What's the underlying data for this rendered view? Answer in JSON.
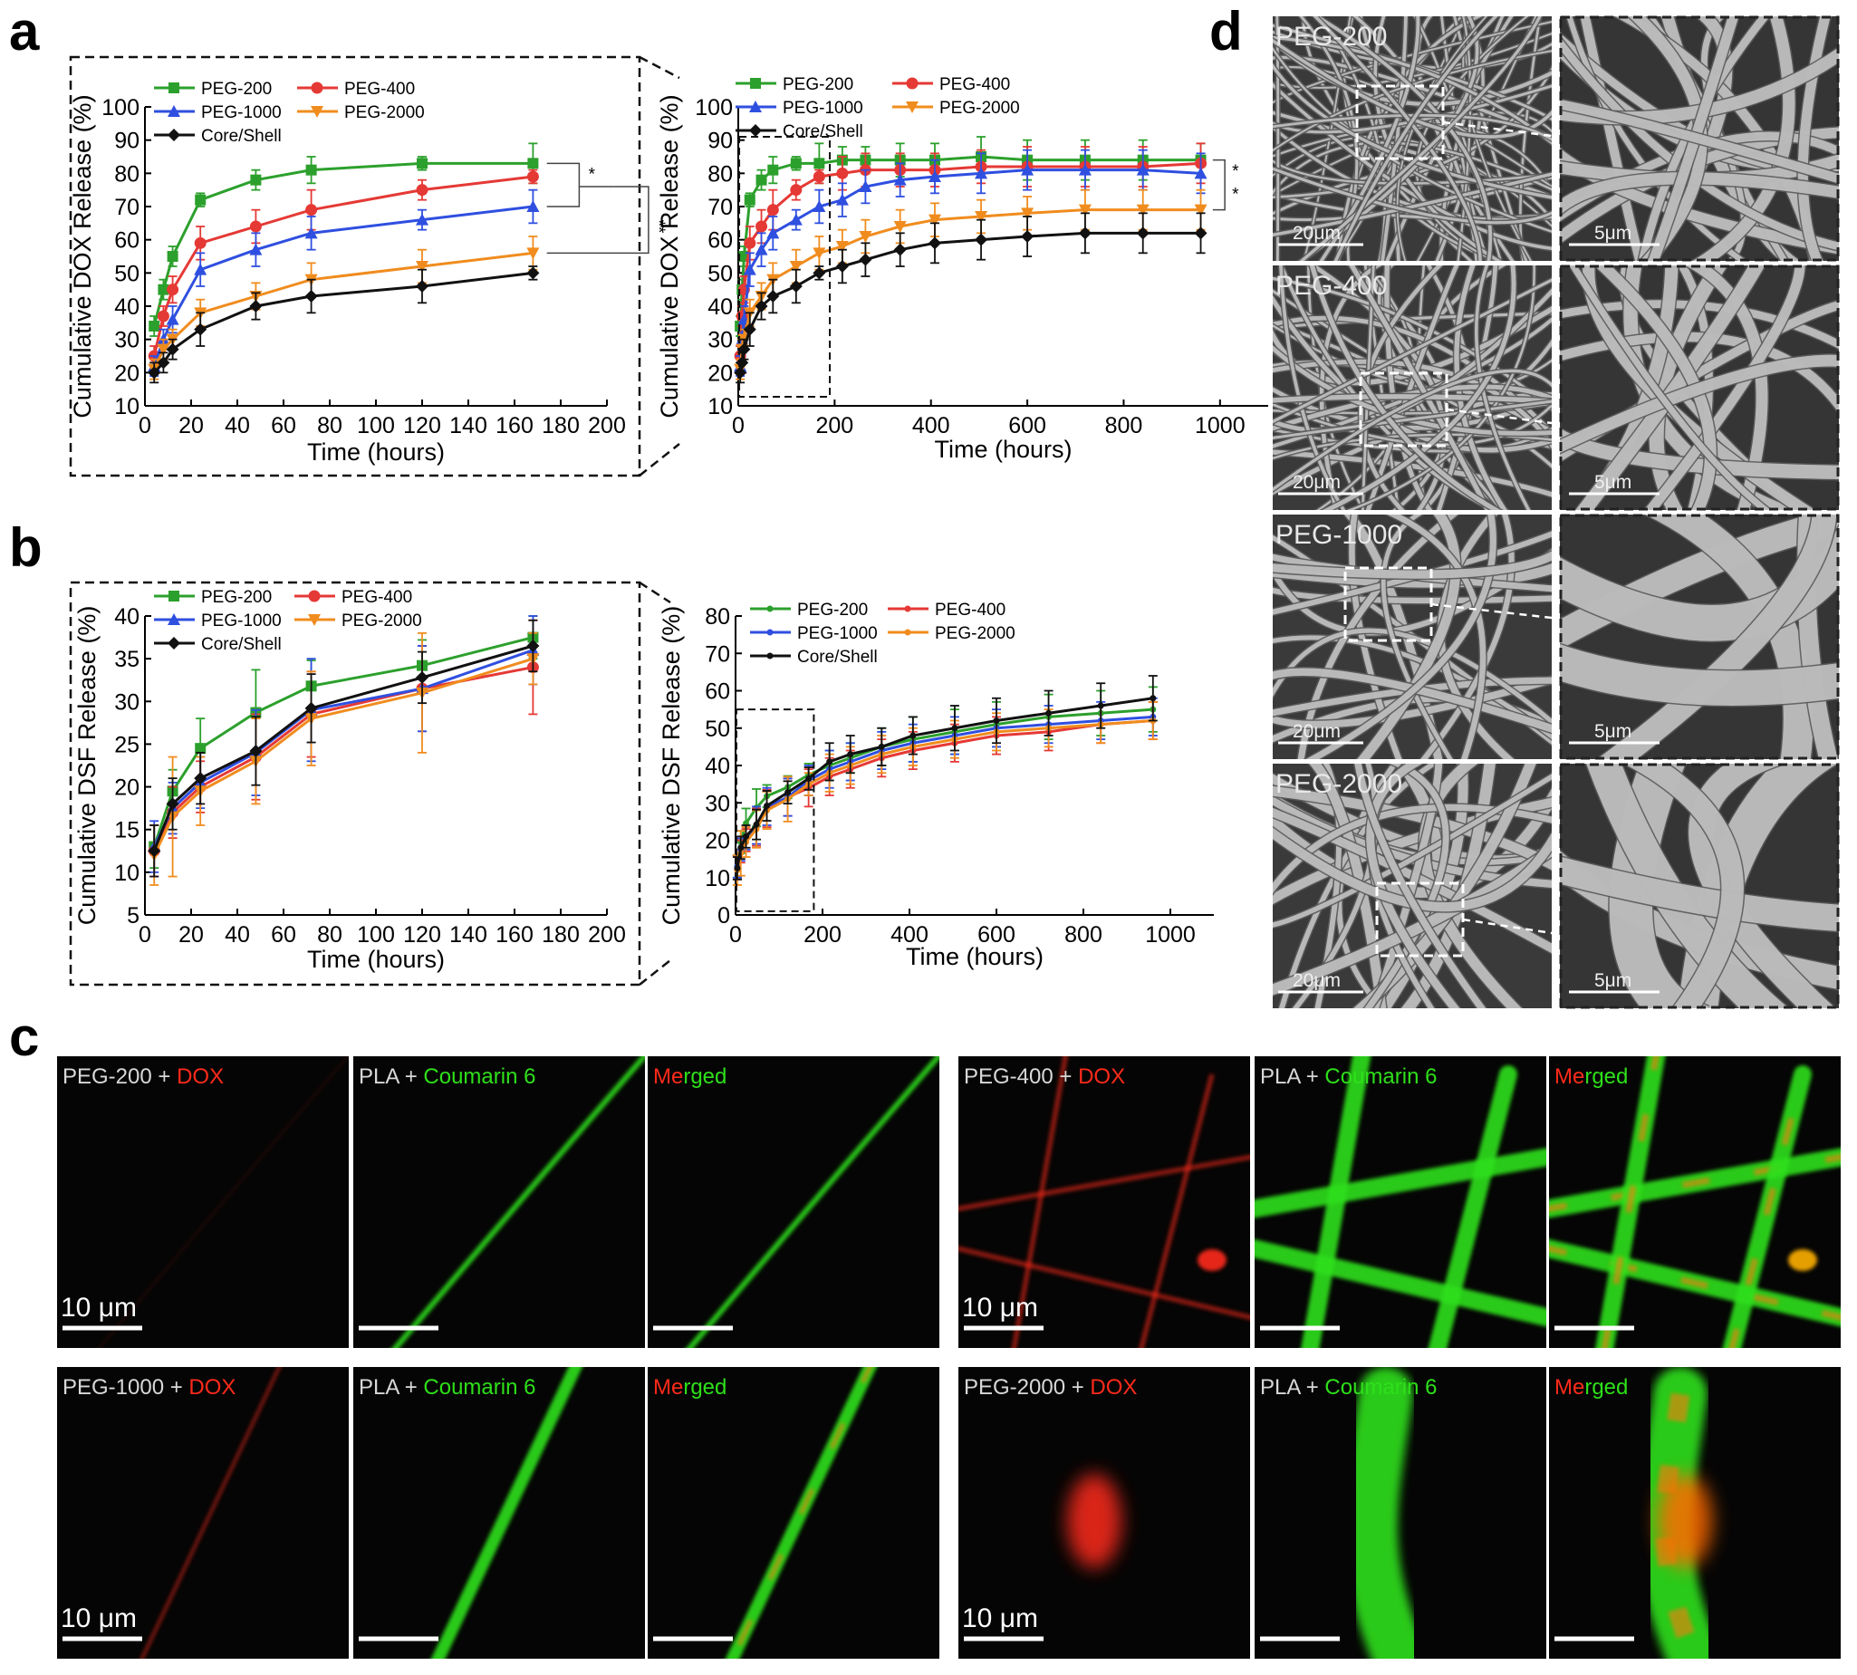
{
  "figure": {
    "panel_letters": {
      "a": "a",
      "b": "b",
      "c": "c",
      "d": "d"
    }
  },
  "colors": {
    "PEG-200": "#2ca02c",
    "PEG-400": "#e53935",
    "PEG-1000": "#2f4fe0",
    "PEG-2000": "#f08c1e",
    "Core/Shell": "#111111",
    "fluor_red": "#ff2a1a",
    "fluor_green": "#2ee01a",
    "label_gray": "#d8d8d8"
  },
  "chart_data": [
    {
      "id": "a_zoom",
      "type": "line",
      "xlabel": "Time (hours)",
      "ylabel": "Cumulative DOX Release (%)",
      "xlim": [
        0,
        200
      ],
      "ylim": [
        10,
        100
      ],
      "xticks": [
        0,
        20,
        40,
        60,
        80,
        100,
        120,
        140,
        160,
        180,
        200
      ],
      "yticks": [
        10,
        20,
        30,
        40,
        50,
        60,
        70,
        80,
        90,
        100
      ],
      "legend_placement": "top-left",
      "legend": [
        "PEG-200",
        "PEG-400",
        "PEG-1000",
        "PEG-2000",
        "Core/Shell"
      ],
      "series": [
        {
          "name": "PEG-200",
          "marker": "square",
          "x": [
            4,
            8,
            12,
            24,
            48,
            72,
            120,
            168
          ],
          "y": [
            34,
            45,
            55,
            72,
            78,
            81,
            83,
            83
          ],
          "err": [
            3,
            3,
            3,
            2,
            3,
            4,
            2,
            6
          ]
        },
        {
          "name": "PEG-400",
          "marker": "circle",
          "x": [
            4,
            8,
            12,
            24,
            48,
            72,
            120,
            168
          ],
          "y": [
            25,
            37,
            45,
            59,
            64,
            69,
            75,
            79
          ],
          "err": [
            3,
            3,
            4,
            5,
            5,
            6,
            3,
            2
          ]
        },
        {
          "name": "PEG-1000",
          "marker": "triangle-up",
          "x": [
            4,
            8,
            12,
            24,
            48,
            72,
            120,
            168
          ],
          "y": [
            22,
            30,
            36,
            51,
            57,
            62,
            66,
            70
          ],
          "err": [
            3,
            3,
            4,
            5,
            5,
            5,
            3,
            5
          ]
        },
        {
          "name": "PEG-2000",
          "marker": "triangle-down",
          "x": [
            4,
            8,
            12,
            24,
            48,
            72,
            120,
            168
          ],
          "y": [
            21,
            27,
            30,
            38,
            43,
            48,
            52,
            56
          ],
          "err": [
            3,
            3,
            3,
            4,
            4,
            5,
            5,
            5
          ]
        },
        {
          "name": "Core/Shell",
          "marker": "diamond",
          "x": [
            4,
            8,
            12,
            24,
            48,
            72,
            120,
            168
          ],
          "y": [
            20,
            23,
            27,
            33,
            40,
            43,
            46,
            50
          ],
          "err": [
            3,
            3,
            3,
            5,
            4,
            5,
            5,
            2
          ]
        }
      ],
      "annotations": [
        "*",
        "**"
      ]
    },
    {
      "id": "a_full",
      "type": "line",
      "xlabel": "Time (hours)",
      "ylabel": "Cumulative DOX Release (%)",
      "xlim": [
        0,
        1100
      ],
      "ylim": [
        10,
        100
      ],
      "xticks": [
        0,
        200,
        400,
        600,
        800,
        1000
      ],
      "yticks": [
        10,
        20,
        30,
        40,
        50,
        60,
        70,
        80,
        90,
        100
      ],
      "legend_placement": "top",
      "legend": [
        "PEG-200",
        "PEG-400",
        "PEG-1000",
        "PEG-2000",
        "Core/Shell"
      ],
      "series": [
        {
          "name": "PEG-200",
          "marker": "square",
          "x": [
            4,
            8,
            12,
            24,
            48,
            72,
            120,
            168,
            216,
            264,
            336,
            408,
            504,
            600,
            720,
            840,
            960
          ],
          "y": [
            34,
            45,
            55,
            72,
            78,
            81,
            83,
            83,
            84,
            84,
            84,
            84,
            85,
            84,
            84,
            84,
            84
          ],
          "err": [
            3,
            3,
            3,
            2,
            3,
            4,
            2,
            6,
            4,
            4,
            5,
            5,
            6,
            6,
            6,
            6,
            5
          ]
        },
        {
          "name": "PEG-400",
          "marker": "circle",
          "x": [
            4,
            8,
            12,
            24,
            48,
            72,
            120,
            168,
            216,
            264,
            336,
            408,
            504,
            600,
            720,
            840,
            960
          ],
          "y": [
            25,
            37,
            45,
            59,
            64,
            69,
            75,
            79,
            80,
            81,
            81,
            81,
            82,
            82,
            82,
            82,
            83
          ],
          "err": [
            3,
            3,
            4,
            5,
            5,
            6,
            3,
            2,
            5,
            5,
            5,
            5,
            5,
            6,
            6,
            6,
            6
          ]
        },
        {
          "name": "PEG-1000",
          "marker": "triangle-up",
          "x": [
            4,
            8,
            12,
            24,
            48,
            72,
            120,
            168,
            216,
            264,
            336,
            408,
            504,
            600,
            720,
            840,
            960
          ],
          "y": [
            22,
            30,
            36,
            51,
            57,
            62,
            66,
            70,
            72,
            76,
            78,
            79,
            80,
            81,
            81,
            81,
            80
          ],
          "err": [
            3,
            3,
            4,
            5,
            5,
            5,
            3,
            5,
            5,
            5,
            5,
            5,
            6,
            6,
            6,
            6,
            6
          ]
        },
        {
          "name": "PEG-2000",
          "marker": "triangle-down",
          "x": [
            4,
            8,
            12,
            24,
            48,
            72,
            120,
            168,
            216,
            264,
            336,
            408,
            504,
            600,
            720,
            840,
            960
          ],
          "y": [
            21,
            27,
            30,
            38,
            43,
            48,
            52,
            56,
            58,
            61,
            64,
            66,
            67,
            68,
            69,
            69,
            69
          ],
          "err": [
            3,
            3,
            3,
            4,
            4,
            5,
            5,
            5,
            5,
            5,
            5,
            5,
            5,
            5,
            6,
            6,
            6
          ]
        },
        {
          "name": "Core/Shell",
          "marker": "diamond",
          "x": [
            4,
            8,
            12,
            24,
            48,
            72,
            120,
            168,
            216,
            264,
            336,
            408,
            504,
            600,
            720,
            840,
            960
          ],
          "y": [
            20,
            23,
            27,
            33,
            40,
            43,
            46,
            50,
            52,
            54,
            57,
            59,
            60,
            61,
            62,
            62,
            62
          ],
          "err": [
            3,
            3,
            3,
            5,
            4,
            5,
            5,
            2,
            5,
            5,
            5,
            6,
            6,
            6,
            6,
            6,
            6
          ]
        }
      ],
      "annotations": [
        "*",
        "*"
      ]
    },
    {
      "id": "b_zoom",
      "type": "line",
      "xlabel": "Time (hours)",
      "ylabel": "Cumulative DSF Release (%)",
      "xlim": [
        0,
        200
      ],
      "ylim": [
        5,
        40
      ],
      "xticks": [
        0,
        20,
        40,
        60,
        80,
        100,
        120,
        140,
        160,
        180,
        200
      ],
      "yticks": [
        5,
        10,
        15,
        20,
        25,
        30,
        35,
        40
      ],
      "legend_placement": "top-left",
      "legend": [
        "PEG-200",
        "PEG-400",
        "PEG-1000",
        "PEG-2000",
        "Core/Shell"
      ],
      "series": [
        {
          "name": "PEG-200",
          "marker": "square",
          "x": [
            4,
            12,
            24,
            48,
            72,
            120,
            168
          ],
          "y": [
            13,
            19.5,
            24.5,
            28.7,
            31.8,
            34.2,
            37.5
          ],
          "err": [
            2.5,
            2.5,
            3.5,
            5,
            3,
            3,
            2.5
          ]
        },
        {
          "name": "PEG-400",
          "marker": "circle",
          "x": [
            4,
            12,
            24,
            48,
            72,
            120,
            168
          ],
          "y": [
            12.5,
            17,
            20,
            23.5,
            28.5,
            31.5,
            34
          ],
          "err": [
            3,
            3,
            3,
            5,
            5,
            5,
            5.5
          ]
        },
        {
          "name": "PEG-1000",
          "marker": "triangle-up",
          "x": [
            4,
            12,
            24,
            48,
            72,
            120,
            168
          ],
          "y": [
            13,
            17.5,
            20.5,
            24,
            29,
            31.5,
            36
          ],
          "err": [
            3,
            3,
            3,
            5,
            6,
            5,
            4
          ]
        },
        {
          "name": "PEG-2000",
          "marker": "triangle-down",
          "x": [
            4,
            12,
            24,
            48,
            72,
            120,
            168
          ],
          "y": [
            12,
            16.5,
            19.5,
            23,
            28,
            31,
            35
          ],
          "err": [
            3.5,
            7,
            4,
            5,
            5.5,
            7,
            3
          ]
        },
        {
          "name": "Core/Shell",
          "marker": "diamond",
          "x": [
            4,
            12,
            24,
            48,
            72,
            120,
            168
          ],
          "y": [
            12.5,
            18,
            21,
            24.2,
            29.2,
            32.8,
            36.5
          ],
          "err": [
            3,
            3,
            3,
            4,
            4,
            3,
            3
          ]
        }
      ]
    },
    {
      "id": "b_full",
      "type": "line",
      "xlabel": "Time (hours)",
      "ylabel": "Cumulative DSF Release (%)",
      "xlim": [
        0,
        1100
      ],
      "ylim": [
        0,
        80
      ],
      "xticks": [
        0,
        200,
        400,
        600,
        800,
        1000
      ],
      "yticks": [
        0,
        10,
        20,
        30,
        40,
        50,
        60,
        70,
        80
      ],
      "legend_placement": "top",
      "legend": [
        "PEG-200",
        "PEG-400",
        "PEG-1000",
        "PEG-2000",
        "Core/Shell"
      ],
      "series": [
        {
          "name": "PEG-200",
          "marker": "dot",
          "x": [
            4,
            12,
            24,
            48,
            72,
            120,
            168,
            216,
            264,
            336,
            408,
            504,
            600,
            720,
            840,
            960
          ],
          "y": [
            13,
            19.5,
            24.5,
            28.7,
            31.8,
            34.2,
            37.5,
            40,
            42,
            45,
            47,
            49,
            51,
            53,
            54,
            55
          ],
          "err": [
            3,
            3,
            4,
            5,
            3,
            3,
            3,
            4,
            4,
            5,
            6,
            6,
            6,
            6,
            6,
            6
          ]
        },
        {
          "name": "PEG-400",
          "marker": "dot",
          "x": [
            4,
            12,
            24,
            48,
            72,
            120,
            168,
            216,
            264,
            336,
            408,
            504,
            600,
            720,
            840,
            960
          ],
          "y": [
            12.5,
            17,
            20,
            23.5,
            28.5,
            31.5,
            34,
            37,
            39,
            42,
            44,
            46,
            48,
            49,
            51,
            52
          ],
          "err": [
            3,
            3,
            3,
            5,
            5,
            5,
            5,
            5,
            5,
            5,
            5,
            5,
            5,
            5,
            5,
            5
          ]
        },
        {
          "name": "PEG-1000",
          "marker": "dot",
          "x": [
            4,
            12,
            24,
            48,
            72,
            120,
            168,
            216,
            264,
            336,
            408,
            504,
            600,
            720,
            840,
            960
          ],
          "y": [
            13,
            17.5,
            20.5,
            24,
            29,
            31.5,
            36,
            39,
            41,
            44,
            46,
            48,
            50,
            51,
            52,
            53
          ],
          "err": [
            3,
            3,
            3,
            5,
            5,
            5,
            4,
            5,
            5,
            5,
            5,
            5,
            5,
            5,
            5,
            5
          ]
        },
        {
          "name": "PEG-2000",
          "marker": "dot",
          "x": [
            4,
            12,
            24,
            48,
            72,
            120,
            168,
            216,
            264,
            336,
            408,
            504,
            600,
            720,
            840,
            960
          ],
          "y": [
            12,
            16.5,
            19.5,
            23,
            28,
            31,
            35,
            38,
            40,
            43,
            45,
            47,
            49,
            50,
            51,
            52
          ],
          "err": [
            4,
            6,
            4,
            5,
            5,
            6,
            3,
            5,
            5,
            5,
            5,
            5,
            5,
            5,
            5,
            5
          ]
        },
        {
          "name": "Core/Shell",
          "marker": "dot",
          "x": [
            4,
            12,
            24,
            48,
            72,
            120,
            168,
            216,
            264,
            336,
            408,
            504,
            600,
            720,
            840,
            960
          ],
          "y": [
            12.5,
            18,
            21,
            24.2,
            29.2,
            32.8,
            36.5,
            41,
            43,
            45,
            48,
            50,
            52,
            54,
            56,
            58
          ],
          "err": [
            3,
            3,
            3,
            4,
            4,
            3,
            3,
            5,
            5,
            5,
            5,
            6,
            6,
            6,
            6,
            6
          ]
        }
      ]
    }
  ],
  "panel_c": {
    "scale_bar_text": "10 μm",
    "groups": [
      {
        "peg": "PEG-200 + ",
        "dox": "DOX",
        "pla": "PLA + ",
        "coumarin": "Coumarin 6",
        "merged": "Merged"
      },
      {
        "peg": "PEG-400 + ",
        "dox": "DOX",
        "pla": "PLA + ",
        "coumarin": "Coumarin 6",
        "merged": "Merged"
      },
      {
        "peg": "PEG-1000 + ",
        "dox": "DOX",
        "pla": "PLA + ",
        "coumarin": "Coumarin 6",
        "merged": "Merged"
      },
      {
        "peg": "PEG-2000 + ",
        "dox": "DOX",
        "pla": "PLA + ",
        "coumarin": "Coumarin 6",
        "merged": "Merged"
      }
    ]
  },
  "panel_d": {
    "rows": [
      {
        "label": "PEG-200",
        "scale_left": "20μm",
        "scale_right": "5μm"
      },
      {
        "label": "PEG-400",
        "scale_left": "20μm",
        "scale_right": "5μm"
      },
      {
        "label": "PEG-1000",
        "scale_left": "20μm",
        "scale_right": "5μm"
      },
      {
        "label": "PEG-2000",
        "scale_left": "20μm",
        "scale_right": "5μm"
      }
    ]
  }
}
